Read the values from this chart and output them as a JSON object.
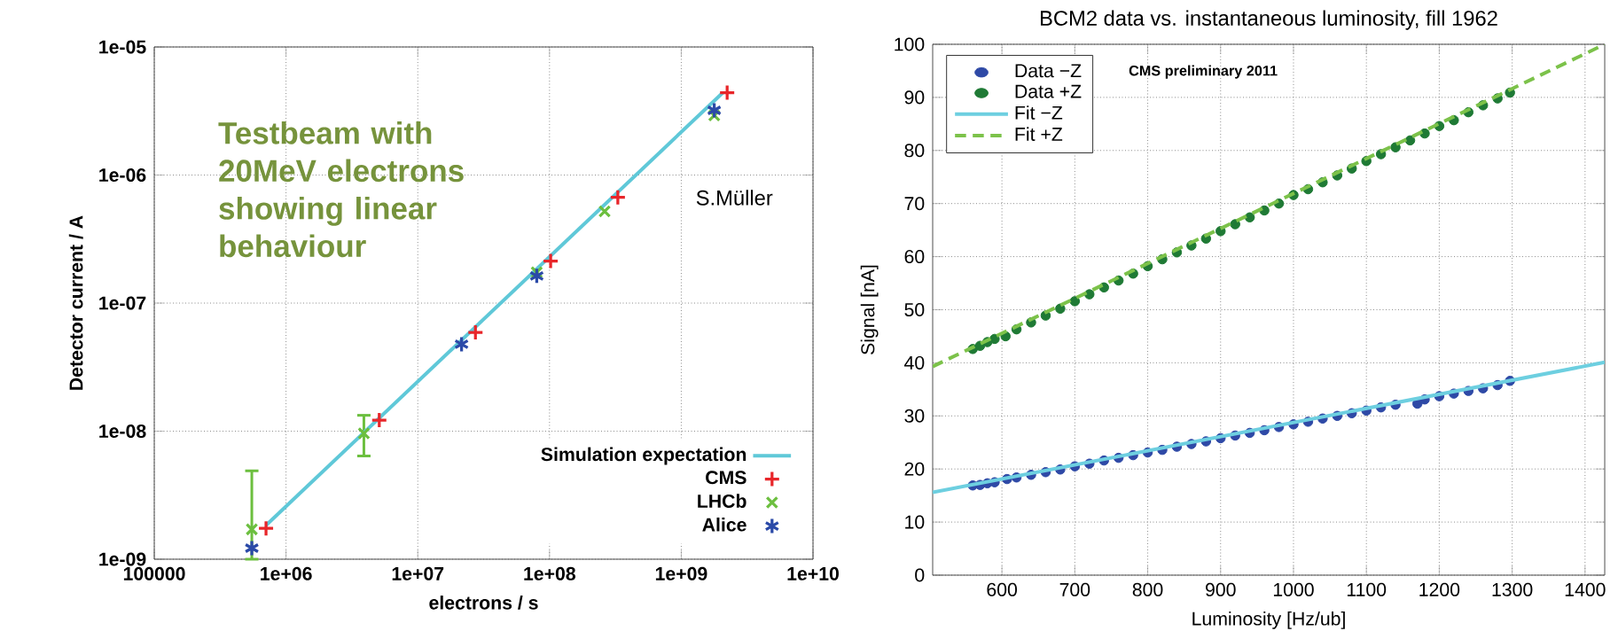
{
  "chart_data": [
    {
      "type": "scatter",
      "xlabel": "electrons / s",
      "ylabel": "Detector current / A",
      "log": "xy",
      "grid": true,
      "legend": "bottom right",
      "xlim": [
        100000,
        10000000000.0
      ],
      "ylim": [
        1e-09,
        1e-05
      ],
      "xticks": [
        100000,
        {
          "value": 1000000.0,
          "label": "1e+06"
        },
        {
          "value": 10000000.0,
          "label": "1e+07"
        },
        {
          "value": 100000000.0,
          "label": "1e+08"
        },
        {
          "value": 1000000000.0,
          "label": "1e+09"
        },
        {
          "value": 10000000000.0,
          "label": "1e+10"
        }
      ],
      "yticks": [
        {
          "value": 1e-09,
          "label": "1e-09"
        },
        {
          "value": 1e-08,
          "label": "1e-08"
        },
        {
          "value": 1e-07,
          "label": "1e-07"
        },
        {
          "value": 1e-06,
          "label": "1e-06"
        },
        {
          "value": 1e-05,
          "label": "1e-05"
        }
      ],
      "annotations": [
        "Testbeam with 20MeV electrons showing linear behaviour",
        "S.Müller"
      ],
      "series": [
        {
          "name": "Simulation expectation",
          "type": "line",
          "color": "#5fc8d8",
          "marker": "none",
          "x": [
            705000.0,
            2070000000.0
          ],
          "values": [
            1.84e-09,
            4.4e-06
          ]
        },
        {
          "name": "CMS",
          "color": "#e8262a",
          "marker": "plus",
          "x": [
            705000.0,
            5100000.0,
            27400000.0,
            102000000.0,
            330000000.0,
            2230000000.0
          ],
          "values": [
            1.74e-09,
            1.22e-08,
            5.9e-08,
            2.13e-07,
            6.7e-07,
            4.4e-06
          ]
        },
        {
          "name": "LHCb",
          "color": "#6cbf3f",
          "marker": "cross",
          "x": [
            550000.0,
            3900000.0,
            80000000.0,
            262000000.0,
            1780000000.0
          ],
          "values": [
            1.71e-09,
            9.6e-09,
            1.74e-07,
            5.2e-07,
            2.92e-06
          ],
          "errors": [
            [
              1e-09,
              4.9e-09
            ],
            [
              6.4e-09,
              1.33e-08
            ],
            null,
            null,
            null
          ]
        },
        {
          "name": "Alice",
          "color": "#2b4aa8",
          "x": [
            550000.0,
            21500000.0,
            80000000.0,
            1780000000.0
          ],
          "values": [
            1.22e-09,
            4.77e-08,
            1.63e-07,
            3.2e-06
          ]
        }
      ]
    },
    {
      "type": "scatter",
      "title": "BCM2 data vs. instantaneous luminosity, fill 1962",
      "xlabel": "Luminosity [Hz/ub]",
      "ylabel": "Signal [nA]",
      "grid": true,
      "legend": "top left",
      "xlim": [
        505,
        1427
      ],
      "ylim": [
        0,
        100
      ],
      "xticks": [
        600,
        700,
        800,
        900,
        1000,
        1100,
        1200,
        1300,
        1400
      ],
      "yticks": [
        0,
        10,
        20,
        30,
        40,
        50,
        60,
        70,
        80,
        90,
        100
      ],
      "annotations": [
        "CMS preliminary 2011"
      ],
      "series": [
        {
          "name": "Data −Z",
          "color": "#2e49a6",
          "marker": "circle",
          "x": [
            560,
            570,
            580,
            590,
            607,
            620,
            640,
            660,
            680,
            700,
            720,
            740,
            760,
            780,
            800,
            820,
            840,
            860,
            880,
            900,
            920,
            940,
            960,
            980,
            1000,
            1020,
            1040,
            1060,
            1080,
            1100,
            1120,
            1140,
            1170,
            1180,
            1200,
            1220,
            1240,
            1260,
            1280,
            1297
          ],
          "values": [
            16.9,
            17.0,
            17.3,
            17.5,
            18.1,
            18.4,
            18.9,
            19.4,
            19.9,
            20.5,
            21.0,
            21.6,
            22.1,
            22.6,
            23.1,
            23.6,
            24.2,
            24.7,
            25.2,
            25.8,
            26.3,
            26.8,
            27.3,
            27.9,
            28.4,
            28.9,
            29.5,
            30.0,
            30.5,
            31.0,
            31.6,
            32.1,
            32.3,
            33.1,
            33.7,
            34.2,
            34.7,
            35.2,
            35.8,
            36.6
          ]
        },
        {
          "name": "Data +Z",
          "color": "#1f7a35",
          "marker": "circle",
          "x": [
            560,
            570,
            580,
            590,
            605,
            620,
            640,
            660,
            680,
            700,
            720,
            740,
            760,
            780,
            800,
            820,
            840,
            860,
            880,
            900,
            920,
            940,
            960,
            980,
            1000,
            1020,
            1040,
            1060,
            1080,
            1100,
            1120,
            1140,
            1160,
            1180,
            1200,
            1220,
            1240,
            1260,
            1280,
            1297
          ],
          "values": [
            42.6,
            43.2,
            43.9,
            44.5,
            45.0,
            46.3,
            47.6,
            48.9,
            50.2,
            51.6,
            52.9,
            54.2,
            55.5,
            56.8,
            58.2,
            59.5,
            60.8,
            62.1,
            63.4,
            64.8,
            66.1,
            67.4,
            68.7,
            70.0,
            71.6,
            72.7,
            74.0,
            75.3,
            76.6,
            78.0,
            79.3,
            80.6,
            81.9,
            83.2,
            84.6,
            85.7,
            87.2,
            88.5,
            89.8,
            90.9
          ]
        },
        {
          "name": "Fit −Z",
          "type": "line",
          "color": "#6dcfe0",
          "marker": "none",
          "line_style": "solid",
          "x": [
            505,
            1427
          ],
          "values": [
            15.6,
            40.1
          ]
        },
        {
          "name": "Fit +Z",
          "type": "line",
          "color": "#7cc24a",
          "marker": "none",
          "line_style": "dashed",
          "x": [
            505,
            1427
          ],
          "values": [
            39.3,
            100
          ]
        }
      ]
    }
  ]
}
